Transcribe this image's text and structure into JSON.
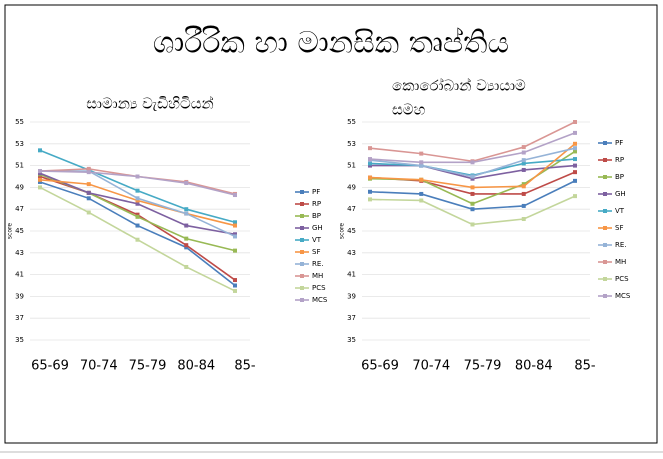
{
  "title": "ශාරීරික හා මානසික තෘප්තිය",
  "chart_data": [
    {
      "type": "line",
      "title": "සාමාන්‍ය වැඩිහිටියන්",
      "y_label": "score",
      "categories": [
        "65-69",
        "70-74",
        "75-79",
        "80-84",
        "85-"
      ],
      "ylim": [
        35,
        55
      ],
      "yticks": [
        35,
        37,
        39,
        41,
        43,
        45,
        47,
        49,
        51,
        53,
        55
      ],
      "grid": true,
      "series": [
        {
          "name": "PF",
          "color": "#4a7ebb",
          "values": [
            49.5,
            48,
            45.5,
            43.5,
            40
          ]
        },
        {
          "name": "RP",
          "color": "#be4b48",
          "values": [
            50,
            48.5,
            46.5,
            43.7,
            40.5
          ]
        },
        {
          "name": "BP",
          "color": "#98b954",
          "values": [
            50.2,
            48.5,
            46.3,
            44.3,
            43.2
          ]
        },
        {
          "name": "GH",
          "color": "#7d60a0",
          "values": [
            50.3,
            48.5,
            47.5,
            45.5,
            44.7
          ]
        },
        {
          "name": "VT",
          "color": "#46aac5",
          "values": [
            52.4,
            50.6,
            48.7,
            47,
            45.8
          ]
        },
        {
          "name": "SF",
          "color": "#f79646",
          "values": [
            49.7,
            49.3,
            47.8,
            46.6,
            45.5
          ]
        },
        {
          "name": "RE.",
          "color": "#95b3d7",
          "values": [
            50.5,
            50.5,
            48,
            46.6,
            44.5
          ]
        },
        {
          "name": "MH",
          "color": "#d99694",
          "values": [
            50.5,
            50.7,
            50,
            49.5,
            48.4
          ]
        },
        {
          "name": "PCS",
          "color": "#c3d69b",
          "values": [
            49,
            46.7,
            44.2,
            41.7,
            39.5
          ]
        },
        {
          "name": "MCS",
          "color": "#b3a2c7",
          "values": [
            50.5,
            50.4,
            50,
            49.4,
            48.3
          ]
        }
      ]
    },
    {
      "type": "line",
      "title": "කොරෝබාන් ව්‍යායාම",
      "subtitle": "සමහ",
      "y_label": "score",
      "categories": [
        "65-69",
        "70-74",
        "75-79",
        "80-84",
        "85-"
      ],
      "ylim": [
        35,
        55
      ],
      "yticks": [
        35,
        37,
        39,
        41,
        43,
        45,
        47,
        49,
        51,
        53,
        55
      ],
      "grid": true,
      "series": [
        {
          "name": "PF",
          "color": "#4a7ebb",
          "values": [
            48.6,
            48.4,
            47,
            47.3,
            49.6
          ]
        },
        {
          "name": "RP",
          "color": "#be4b48",
          "values": [
            49.9,
            49.6,
            48.4,
            48.4,
            50.4
          ]
        },
        {
          "name": "BP",
          "color": "#98b954",
          "values": [
            49.8,
            49.7,
            47.5,
            49.3,
            52.3
          ]
        },
        {
          "name": "GH",
          "color": "#7d60a0",
          "values": [
            51,
            51,
            49.8,
            50.6,
            51
          ]
        },
        {
          "name": "VT",
          "color": "#46aac5",
          "values": [
            51.2,
            51,
            50.1,
            51.2,
            51.6
          ]
        },
        {
          "name": "SF",
          "color": "#f79646",
          "values": [
            49.9,
            49.7,
            49,
            49.1,
            53
          ]
        },
        {
          "name": "RE.",
          "color": "#95b3d7",
          "values": [
            51.5,
            51,
            50,
            51.5,
            52.6
          ]
        },
        {
          "name": "MH",
          "color": "#d99694",
          "values": [
            52.6,
            52.1,
            51.4,
            52.7,
            55
          ]
        },
        {
          "name": "PCS",
          "color": "#c3d69b",
          "values": [
            47.9,
            47.8,
            45.6,
            46.1,
            48.2
          ]
        },
        {
          "name": "MCS",
          "color": "#b3a2c7",
          "values": [
            51.6,
            51.3,
            51.3,
            52.2,
            54
          ]
        }
      ]
    }
  ]
}
